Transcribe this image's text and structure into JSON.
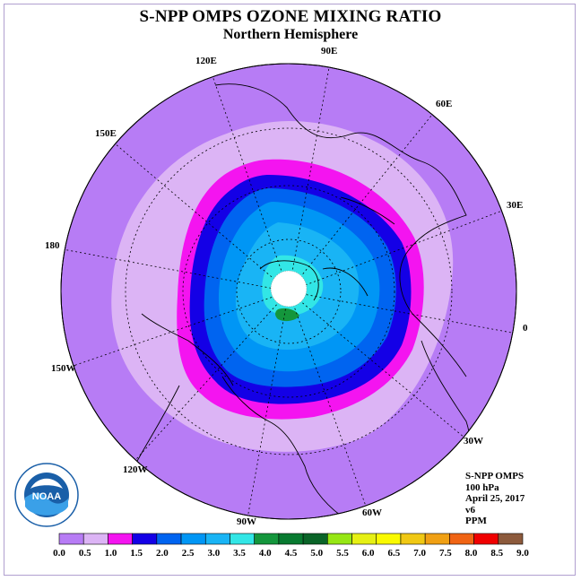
{
  "header": {
    "title": "S-NPP OMPS OZONE MIXING RATIO",
    "subtitle": "Northern Hemisphere"
  },
  "map": {
    "projection": "north polar stereographic",
    "longitude_labels": [
      "90E",
      "60E",
      "30E",
      "0",
      "30W",
      "60W",
      "90W",
      "120W",
      "150W",
      "180",
      "150E",
      "120E"
    ],
    "no_data_region": "pole",
    "outer_fill_color": "#b77cf5"
  },
  "info": {
    "instrument": "S-NPP OMPS",
    "level": "100 hPa",
    "date": "April 25, 2017",
    "version": "v6",
    "units": "PPM"
  },
  "logo": {
    "text": "NOAA",
    "ring_text": "NATIONAL OCEANIC AND ATMOSPHERIC ADMINISTRATION",
    "ring_text_bottom": "U.S. DEPARTMENT OF COMMERCE"
  },
  "colorbar": {
    "ticks": [
      "0.0",
      "0.5",
      "1.0",
      "1.5",
      "2.0",
      "2.5",
      "3.0",
      "3.5",
      "4.0",
      "4.5",
      "5.0",
      "5.5",
      "6.0",
      "6.5",
      "7.0",
      "7.5",
      "8.0",
      "8.5",
      "9.0"
    ],
    "colors": [
      "#b77cf5",
      "#dcb4f5",
      "#f414f0",
      "#1400e6",
      "#0064f0",
      "#0096f5",
      "#19b4f5",
      "#32e6e6",
      "#14963c",
      "#087a30",
      "#0a6428",
      "#96e614",
      "#e6f014",
      "#fafa00",
      "#f0c814",
      "#f0a014",
      "#f06414",
      "#f00000",
      "#8c5a3c"
    ]
  }
}
